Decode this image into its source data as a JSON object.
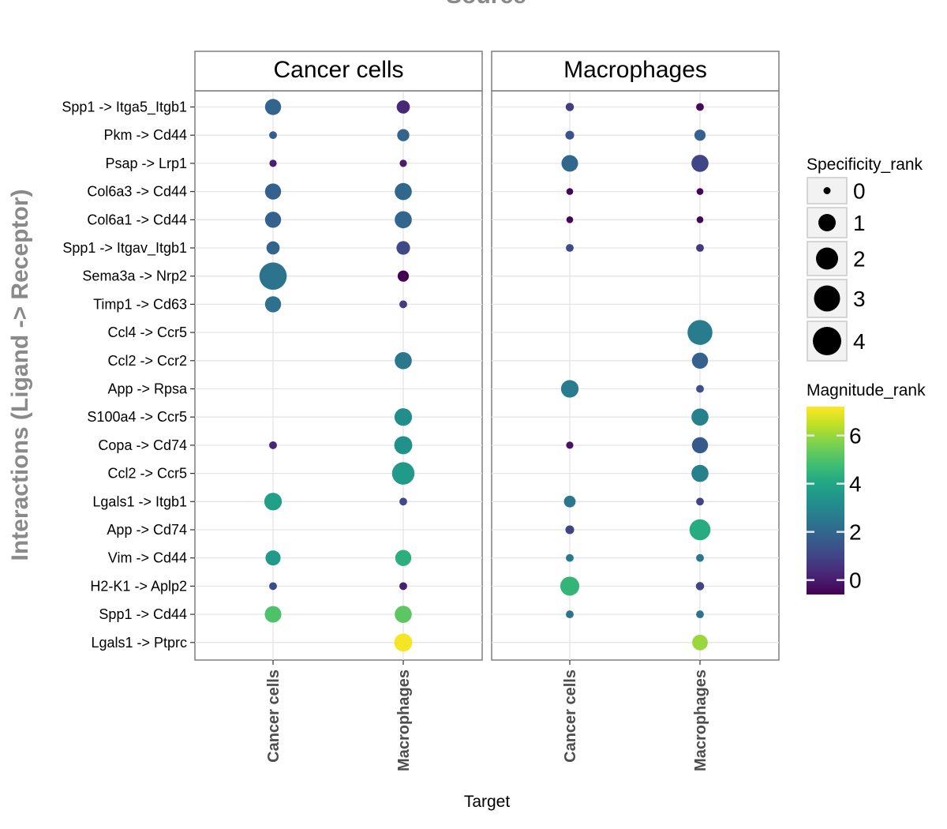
{
  "chart_data": {
    "type": "scatter",
    "top_title": "Source",
    "xlabel": "Target",
    "ylabel": "Interactions (Ligand -> Receptor)",
    "facets": [
      "Cancer cells",
      "Macrophages"
    ],
    "targets": [
      "Cancer cells",
      "Macrophages"
    ],
    "interactions": [
      "Spp1 -> Itga5_Itgb1",
      "Pkm -> Cd44",
      "Psap -> Lrp1",
      "Col6a3 -> Cd44",
      "Col6a1 -> Cd44",
      "Spp1 -> Itgav_Itgb1",
      "Sema3a -> Nrp2",
      "Timp1 -> Cd63",
      "Ccl4 -> Ccr5",
      "Ccl2 -> Ccr2",
      "App -> Rpsa",
      "S100a4 -> Ccr5",
      "Copa -> Cd74",
      "Ccl2 -> Ccr5",
      "Lgals1 -> Itgb1",
      "App -> Cd74",
      "Vim -> Cd44",
      "H2-K1 -> Aplp2",
      "Spp1 -> Cd44",
      "Lgals1 -> Ptprc"
    ],
    "size_legend": {
      "title": "Specificity_rank",
      "values": [
        "0",
        "1",
        "2",
        "3",
        "4"
      ]
    },
    "color_legend": {
      "title": "Magnitude_rank",
      "ticks": [
        "0",
        "2",
        "4",
        "6"
      ],
      "range": [
        -0.6,
        7.2
      ]
    },
    "grid": true,
    "legend_position": "right",
    "points": [
      {
        "source": "Cancer cells",
        "target": "Cancer cells",
        "interaction": "Spp1 -> Itga5_Itgb1",
        "specificity": 2.0,
        "magnitude": 1.9
      },
      {
        "source": "Cancer cells",
        "target": "Macrophages",
        "interaction": "Spp1 -> Itga5_Itgb1",
        "specificity": 1.4,
        "magnitude": 0.3
      },
      {
        "source": "Macrophages",
        "target": "Cancer cells",
        "interaction": "Spp1 -> Itga5_Itgb1",
        "specificity": 0.4,
        "magnitude": 0.8
      },
      {
        "source": "Macrophages",
        "target": "Macrophages",
        "interaction": "Spp1 -> Itga5_Itgb1",
        "specificity": 0.3,
        "magnitude": -0.4
      },
      {
        "source": "Cancer cells",
        "target": "Cancer cells",
        "interaction": "Pkm -> Cd44",
        "specificity": 0.3,
        "magnitude": 1.7
      },
      {
        "source": "Cancer cells",
        "target": "Macrophages",
        "interaction": "Pkm -> Cd44",
        "specificity": 1.2,
        "magnitude": 1.9
      },
      {
        "source": "Macrophages",
        "target": "Cancer cells",
        "interaction": "Pkm -> Cd44",
        "specificity": 0.5,
        "magnitude": 1.4
      },
      {
        "source": "Macrophages",
        "target": "Macrophages",
        "interaction": "Pkm -> Cd44",
        "specificity": 1.0,
        "magnitude": 1.8
      },
      {
        "source": "Cancer cells",
        "target": "Cancer cells",
        "interaction": "Psap -> Lrp1",
        "specificity": 0.2,
        "magnitude": 0.1
      },
      {
        "source": "Cancer cells",
        "target": "Macrophages",
        "interaction": "Psap -> Lrp1",
        "specificity": 0.2,
        "magnitude": 0.0
      },
      {
        "source": "Macrophages",
        "target": "Cancer cells",
        "interaction": "Psap -> Lrp1",
        "specificity": 2.1,
        "magnitude": 2.0
      },
      {
        "source": "Macrophages",
        "target": "Macrophages",
        "interaction": "Psap -> Lrp1",
        "specificity": 2.2,
        "magnitude": 1.0
      },
      {
        "source": "Cancer cells",
        "target": "Cancer cells",
        "interaction": "Col6a3 -> Cd44",
        "specificity": 2.0,
        "magnitude": 1.8
      },
      {
        "source": "Cancer cells",
        "target": "Macrophages",
        "interaction": "Col6a3 -> Cd44",
        "specificity": 2.2,
        "magnitude": 2.0
      },
      {
        "source": "Macrophages",
        "target": "Cancer cells",
        "interaction": "Col6a3 -> Cd44",
        "specificity": 0.1,
        "magnitude": -0.5
      },
      {
        "source": "Macrophages",
        "target": "Macrophages",
        "interaction": "Col6a3 -> Cd44",
        "specificity": 0.1,
        "magnitude": -0.5
      },
      {
        "source": "Cancer cells",
        "target": "Cancer cells",
        "interaction": "Col6a1 -> Cd44",
        "specificity": 2.0,
        "magnitude": 1.8
      },
      {
        "source": "Cancer cells",
        "target": "Macrophages",
        "interaction": "Col6a1 -> Cd44",
        "specificity": 2.2,
        "magnitude": 2.0
      },
      {
        "source": "Macrophages",
        "target": "Cancer cells",
        "interaction": "Col6a1 -> Cd44",
        "specificity": 0.1,
        "magnitude": -0.5
      },
      {
        "source": "Macrophages",
        "target": "Macrophages",
        "interaction": "Col6a1 -> Cd44",
        "specificity": 0.1,
        "magnitude": -0.5
      },
      {
        "source": "Cancer cells",
        "target": "Cancer cells",
        "interaction": "Spp1 -> Itgav_Itgb1",
        "specificity": 1.4,
        "magnitude": 1.9
      },
      {
        "source": "Cancer cells",
        "target": "Macrophages",
        "interaction": "Spp1 -> Itgav_Itgb1",
        "specificity": 1.5,
        "magnitude": 1.1
      },
      {
        "source": "Macrophages",
        "target": "Cancer cells",
        "interaction": "Spp1 -> Itgav_Itgb1",
        "specificity": 0.3,
        "magnitude": 1.2
      },
      {
        "source": "Macrophages",
        "target": "Macrophages",
        "interaction": "Spp1 -> Itgav_Itgb1",
        "specificity": 0.3,
        "magnitude": 0.7
      },
      {
        "source": "Cancer cells",
        "target": "Cancer cells",
        "interaction": "Sema3a -> Nrp2",
        "specificity": 4.3,
        "magnitude": 2.4
      },
      {
        "source": "Cancer cells",
        "target": "Macrophages",
        "interaction": "Sema3a -> Nrp2",
        "specificity": 1.0,
        "magnitude": -0.6
      },
      {
        "source": "Cancer cells",
        "target": "Cancer cells",
        "interaction": "Timp1 -> Cd63",
        "specificity": 2.0,
        "magnitude": 2.3
      },
      {
        "source": "Cancer cells",
        "target": "Macrophages",
        "interaction": "Timp1 -> Cd63",
        "specificity": 0.3,
        "magnitude": 0.8
      },
      {
        "source": "Macrophages",
        "target": "Macrophages",
        "interaction": "Ccl4 -> Ccr5",
        "specificity": 3.8,
        "magnitude": 2.6
      },
      {
        "source": "Cancer cells",
        "target": "Macrophages",
        "interaction": "Ccl2 -> Ccr2",
        "specificity": 2.2,
        "magnitude": 2.5
      },
      {
        "source": "Macrophages",
        "target": "Macrophages",
        "interaction": "Ccl2 -> Ccr2",
        "specificity": 2.0,
        "magnitude": 1.8
      },
      {
        "source": "Macrophages",
        "target": "Cancer cells",
        "interaction": "App -> Rpsa",
        "specificity": 2.3,
        "magnitude": 2.6
      },
      {
        "source": "Macrophages",
        "target": "Macrophages",
        "interaction": "App -> Rpsa",
        "specificity": 0.3,
        "magnitude": 1.3
      },
      {
        "source": "Cancer cells",
        "target": "Macrophages",
        "interaction": "S100a4 -> Ccr5",
        "specificity": 2.3,
        "magnitude": 3.2
      },
      {
        "source": "Macrophages",
        "target": "Macrophages",
        "interaction": "S100a4 -> Ccr5",
        "specificity": 2.2,
        "magnitude": 2.8
      },
      {
        "source": "Cancer cells",
        "target": "Cancer cells",
        "interaction": "Copa -> Cd74",
        "specificity": 0.3,
        "magnitude": 0.2
      },
      {
        "source": "Cancer cells",
        "target": "Macrophages",
        "interaction": "Copa -> Cd74",
        "specificity": 2.4,
        "magnitude": 3.3
      },
      {
        "source": "Macrophages",
        "target": "Cancer cells",
        "interaction": "Copa -> Cd74",
        "specificity": 0.2,
        "magnitude": -0.2
      },
      {
        "source": "Macrophages",
        "target": "Macrophages",
        "interaction": "Copa -> Cd74",
        "specificity": 2.0,
        "magnitude": 1.6
      },
      {
        "source": "Cancer cells",
        "target": "Macrophages",
        "interaction": "Ccl2 -> Ccr5",
        "specificity": 3.3,
        "magnitude": 3.6
      },
      {
        "source": "Macrophages",
        "target": "Macrophages",
        "interaction": "Ccl2 -> Ccr5",
        "specificity": 2.2,
        "magnitude": 2.8
      },
      {
        "source": "Cancer cells",
        "target": "Cancer cells",
        "interaction": "Lgals1 -> Itgb1",
        "specificity": 2.3,
        "magnitude": 3.8
      },
      {
        "source": "Cancer cells",
        "target": "Macrophages",
        "interaction": "Lgals1 -> Itgb1",
        "specificity": 0.3,
        "magnitude": 1.2
      },
      {
        "source": "Macrophages",
        "target": "Cancer cells",
        "interaction": "Lgals1 -> Itgb1",
        "specificity": 1.1,
        "magnitude": 2.5
      },
      {
        "source": "Macrophages",
        "target": "Macrophages",
        "interaction": "Lgals1 -> Itgb1",
        "specificity": 0.3,
        "magnitude": 1.0
      },
      {
        "source": "Macrophages",
        "target": "Cancer cells",
        "interaction": "App -> Cd74",
        "specificity": 0.5,
        "magnitude": 0.9
      },
      {
        "source": "Macrophages",
        "target": "Macrophages",
        "interaction": "App -> Cd74",
        "specificity": 3.0,
        "magnitude": 4.2
      },
      {
        "source": "Cancer cells",
        "target": "Cancer cells",
        "interaction": "Vim -> Cd44",
        "specificity": 1.8,
        "magnitude": 3.6
      },
      {
        "source": "Cancer cells",
        "target": "Macrophages",
        "interaction": "Vim -> Cd44",
        "specificity": 2.0,
        "magnitude": 4.3
      },
      {
        "source": "Macrophages",
        "target": "Cancer cells",
        "interaction": "Vim -> Cd44",
        "specificity": 0.3,
        "magnitude": 2.5
      },
      {
        "source": "Macrophages",
        "target": "Macrophages",
        "interaction": "Vim -> Cd44",
        "specificity": 0.3,
        "magnitude": 2.5
      },
      {
        "source": "Cancer cells",
        "target": "Cancer cells",
        "interaction": "H2-K1 -> Aplp2",
        "specificity": 0.3,
        "magnitude": 1.2
      },
      {
        "source": "Cancer cells",
        "target": "Macrophages",
        "interaction": "H2-K1 -> Aplp2",
        "specificity": 0.3,
        "magnitude": 0.1
      },
      {
        "source": "Macrophages",
        "target": "Cancer cells",
        "interaction": "H2-K1 -> Aplp2",
        "specificity": 2.6,
        "magnitude": 4.5
      },
      {
        "source": "Macrophages",
        "target": "Macrophages",
        "interaction": "H2-K1 -> Aplp2",
        "specificity": 0.4,
        "magnitude": 0.9
      },
      {
        "source": "Cancer cells",
        "target": "Cancer cells",
        "interaction": "Spp1 -> Cd44",
        "specificity": 2.1,
        "magnitude": 5.0
      },
      {
        "source": "Cancer cells",
        "target": "Macrophages",
        "interaction": "Spp1 -> Cd44",
        "specificity": 2.2,
        "magnitude": 5.2
      },
      {
        "source": "Macrophages",
        "target": "Cancer cells",
        "interaction": "Spp1 -> Cd44",
        "specificity": 0.3,
        "magnitude": 2.4
      },
      {
        "source": "Macrophages",
        "target": "Macrophages",
        "interaction": "Spp1 -> Cd44",
        "specificity": 0.3,
        "magnitude": 2.4
      },
      {
        "source": "Cancer cells",
        "target": "Macrophages",
        "interaction": "Lgals1 -> Ptprc",
        "specificity": 2.4,
        "magnitude": 7.1
      },
      {
        "source": "Macrophages",
        "target": "Macrophages",
        "interaction": "Lgals1 -> Ptprc",
        "specificity": 1.9,
        "magnitude": 6.0
      }
    ]
  }
}
